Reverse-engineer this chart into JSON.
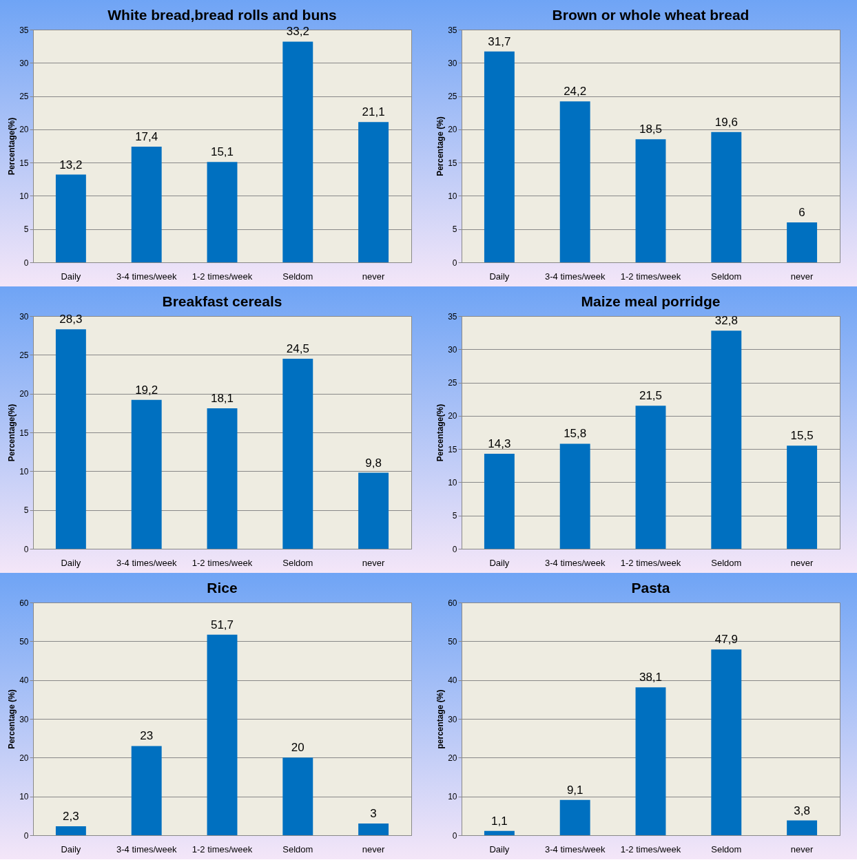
{
  "chart_data": [
    {
      "type": "bar",
      "title": "White bread,bread rolls and buns",
      "ylabel": "Percentage(%)",
      "categories": [
        "Daily",
        "3-4 times/week",
        "1-2 times/week",
        "Seldom",
        "never"
      ],
      "values": [
        13.2,
        17.4,
        15.1,
        33.2,
        21.1
      ],
      "value_labels": [
        "13,2",
        "17,4",
        "15,1",
        "33,2",
        "21,1"
      ],
      "color": "#0070c0",
      "ylim": [
        0,
        35
      ],
      "yticks": [
        0,
        5,
        10,
        15,
        20,
        25,
        30,
        35
      ],
      "grid": "y"
    },
    {
      "type": "bar",
      "title": "Brown or whole wheat bread",
      "ylabel": "Percentage (%)",
      "categories": [
        "Daily",
        "3-4 times/week",
        "1-2 times/week",
        "Seldom",
        "never"
      ],
      "values": [
        31.7,
        24.2,
        18.5,
        19.6,
        6
      ],
      "value_labels": [
        "31,7",
        "24,2",
        "18,5",
        "19,6",
        "6"
      ],
      "color": "#0070c0",
      "ylim": [
        0,
        35
      ],
      "yticks": [
        0,
        5,
        10,
        15,
        20,
        25,
        30,
        35
      ],
      "grid": "y"
    },
    {
      "type": "bar",
      "title": "Breakfast cereals",
      "ylabel": "Percentage(%)",
      "categories": [
        "Daily",
        "3-4 times/week",
        "1-2 times/week",
        "Seldom",
        "never"
      ],
      "values": [
        28.3,
        19.2,
        18.1,
        24.5,
        9.8
      ],
      "value_labels": [
        "28,3",
        "19,2",
        "18,1",
        "24,5",
        "9,8"
      ],
      "color": "#0070c0",
      "ylim": [
        0,
        30
      ],
      "yticks": [
        0,
        5,
        10,
        15,
        20,
        25,
        30
      ],
      "grid": "y"
    },
    {
      "type": "bar",
      "title": "Maize meal porridge",
      "ylabel": "Percentage(%)",
      "categories": [
        "Daily",
        "3-4 times/week",
        "1-2 times/week",
        "Seldom",
        "never"
      ],
      "values": [
        14.3,
        15.8,
        21.5,
        32.8,
        15.5
      ],
      "value_labels": [
        "14,3",
        "15,8",
        "21,5",
        "32,8",
        "15,5"
      ],
      "color": "#0070c0",
      "ylim": [
        0,
        35
      ],
      "yticks": [
        0,
        5,
        10,
        15,
        20,
        25,
        30,
        35
      ],
      "grid": "y"
    },
    {
      "type": "bar",
      "title": "Rice",
      "ylabel": "Percentage (%)",
      "categories": [
        "Daily",
        "3-4 times/week",
        "1-2 times/week",
        "Seldom",
        "never"
      ],
      "values": [
        2.3,
        23,
        51.7,
        20,
        3
      ],
      "value_labels": [
        "2,3",
        "23",
        "51,7",
        "20",
        "3"
      ],
      "color": "#0070c0",
      "ylim": [
        0,
        60
      ],
      "yticks": [
        0,
        10,
        20,
        30,
        40,
        50,
        60
      ],
      "grid": "y"
    },
    {
      "type": "bar",
      "title": "Pasta",
      "ylabel": "percentage (%)",
      "categories": [
        "Daily",
        "3-4 times/week",
        "1-2 times/week",
        "Seldom",
        "never"
      ],
      "values": [
        1.1,
        9.1,
        38.1,
        47.9,
        3.8
      ],
      "value_labels": [
        "1,1",
        "9,1",
        "38,1",
        "47,9",
        "3,8"
      ],
      "color": "#0070c0",
      "ylim": [
        0,
        60
      ],
      "yticks": [
        0,
        10,
        20,
        30,
        40,
        50,
        60
      ],
      "grid": "y"
    }
  ]
}
